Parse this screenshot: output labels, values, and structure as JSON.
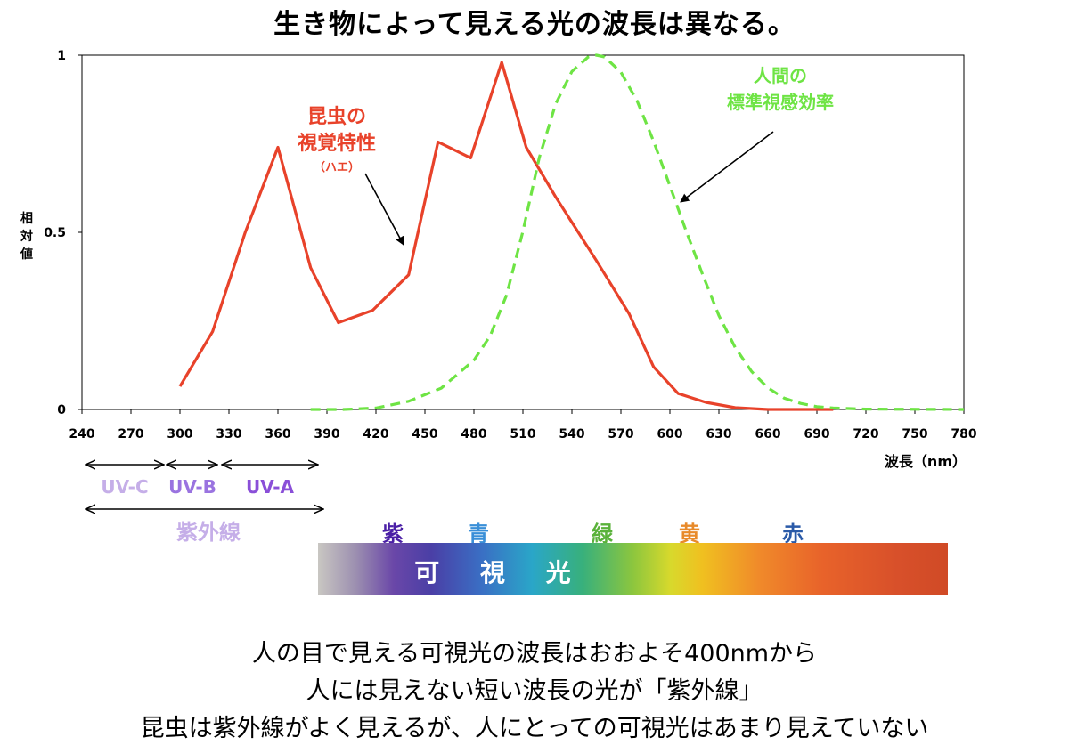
{
  "title": "生き物によって見える光の波長は異なる。",
  "chart_data": {
    "type": "line",
    "xlabel": "波長（nm）",
    "ylabel": "相対値",
    "xlim": [
      240,
      780
    ],
    "ylim": [
      0,
      1
    ],
    "x_ticks": [
      "240",
      "270",
      "300",
      "330",
      "360",
      "390",
      "420",
      "450",
      "480",
      "510",
      "540",
      "570",
      "600",
      "630",
      "660",
      "690",
      "720",
      "750",
      "780"
    ],
    "y_ticks": [
      "0",
      "0.5",
      "1"
    ],
    "grid": false,
    "series": [
      {
        "name": "昆虫の視覚特性（ハエ）",
        "color": "#e8422a",
        "style": "solid",
        "points": [
          [
            300,
            0.065
          ],
          [
            320,
            0.22
          ],
          [
            340,
            0.5
          ],
          [
            360,
            0.74
          ],
          [
            380,
            0.4
          ],
          [
            397,
            0.245
          ],
          [
            418,
            0.28
          ],
          [
            440,
            0.38
          ],
          [
            458,
            0.755
          ],
          [
            478,
            0.71
          ],
          [
            497,
            0.98
          ],
          [
            512,
            0.74
          ],
          [
            530,
            0.6
          ],
          [
            555,
            0.42
          ],
          [
            575,
            0.27
          ],
          [
            590,
            0.12
          ],
          [
            605,
            0.045
          ],
          [
            622,
            0.02
          ],
          [
            640,
            0.005
          ],
          [
            660,
            0.0
          ],
          [
            700,
            0.0
          ]
        ]
      },
      {
        "name": "人間の標準視感効率",
        "color": "#6ee444",
        "style": "dashed",
        "points": [
          [
            380,
            0.0
          ],
          [
            400,
            0.0
          ],
          [
            420,
            0.004
          ],
          [
            440,
            0.023
          ],
          [
            460,
            0.06
          ],
          [
            480,
            0.139
          ],
          [
            490,
            0.208
          ],
          [
            500,
            0.323
          ],
          [
            510,
            0.503
          ],
          [
            520,
            0.71
          ],
          [
            530,
            0.862
          ],
          [
            540,
            0.954
          ],
          [
            550,
            0.995
          ],
          [
            555,
            1.0
          ],
          [
            560,
            0.995
          ],
          [
            570,
            0.952
          ],
          [
            580,
            0.87
          ],
          [
            590,
            0.757
          ],
          [
            600,
            0.631
          ],
          [
            610,
            0.503
          ],
          [
            620,
            0.381
          ],
          [
            630,
            0.265
          ],
          [
            640,
            0.175
          ],
          [
            650,
            0.107
          ],
          [
            660,
            0.061
          ],
          [
            670,
            0.032
          ],
          [
            680,
            0.017
          ],
          [
            690,
            0.008
          ],
          [
            700,
            0.004
          ],
          [
            720,
            0.001
          ],
          [
            780,
            0.0
          ]
        ]
      }
    ],
    "annotations": {
      "insect_label_line1": "昆虫の",
      "insect_label_line2": "視覚特性",
      "insect_label_line3": "（ハエ）",
      "human_label_line1": "人間の",
      "human_label_line2": "標準視感効率"
    }
  },
  "uv_ranges": {
    "uvc": "UV-C",
    "uvb": "UV-B",
    "uva": "UV-A",
    "ultraviolet": "紫外線"
  },
  "spectrum": {
    "label": "可 視 光",
    "colors": {
      "violet": "紫",
      "blue": "青",
      "green": "緑",
      "yellow": "黄",
      "red": "赤"
    }
  },
  "caption": {
    "line1": "人の目で見える可視光の波長はおおよそ400nmから",
    "line2": "人には見えない短い波長の光が「紫外線」",
    "line3": "昆虫は紫外線がよく見えるが、人にとっての可視光はあまり見えていない"
  }
}
